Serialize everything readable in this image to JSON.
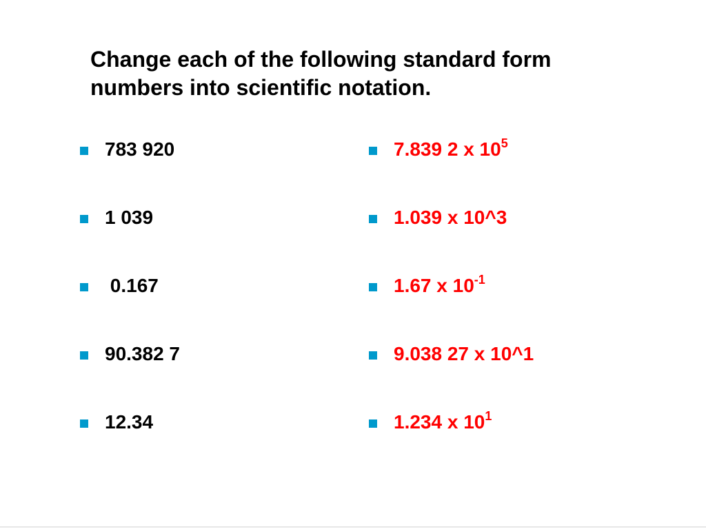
{
  "slide": {
    "title": "Change each of the following standard form numbers into scientific notation.",
    "bullet_color": "#0099cc",
    "standard_form": [
      {
        "text": "783 920"
      },
      {
        "text": "1 039"
      },
      {
        "text": " 0.167"
      },
      {
        "text": "90.382 7"
      },
      {
        "text": "12.34"
      }
    ],
    "scientific_notation": [
      {
        "base": "7.839 2 x 10",
        "exponent": "5"
      },
      {
        "base": "1.039 x 10^3",
        "exponent": ""
      },
      {
        "base": "1.67 x 10",
        "exponent": "-1"
      },
      {
        "base": "9.038 27 x 10^1",
        "exponent": ""
      },
      {
        "base": "1.234 x 10",
        "exponent": "1"
      }
    ],
    "answer_color": "#ff0000"
  }
}
